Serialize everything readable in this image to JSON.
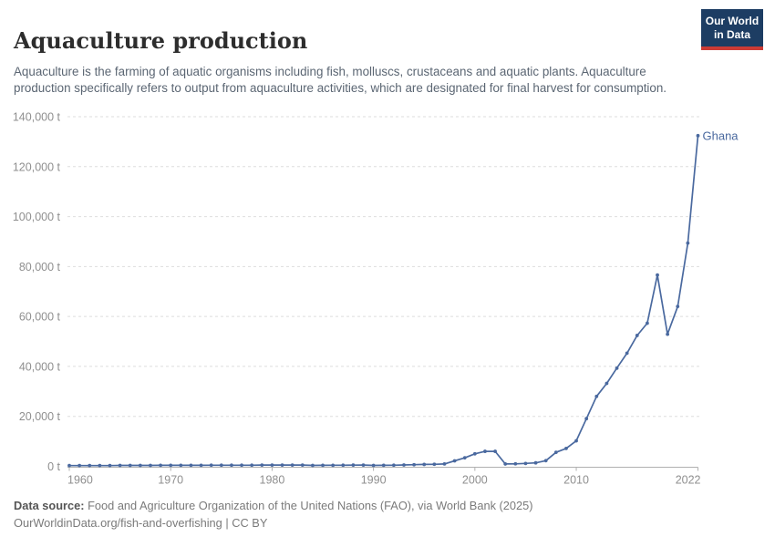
{
  "header": {
    "title": "Aquaculture production",
    "subtitle": "Aquaculture is the farming of aquatic organisms including fish, molluscs, crustaceans and aquatic plants. Aquaculture production specifically refers to output from aquaculture activities, which are designated for final harvest for consumption.",
    "logo": {
      "line1": "Our World",
      "line2": "in Data",
      "bg_color": "#1d3d63",
      "stripe_color": "#cc3b35"
    }
  },
  "chart_data": {
    "type": "line",
    "title": "Aquaculture production",
    "entity_label": "Ghana",
    "unit": "t",
    "line_color": "#4a699f",
    "grid": "dashed",
    "legend_position": "end-of-line-label",
    "xlim": [
      1960,
      2022
    ],
    "ylim": [
      0,
      140000
    ],
    "xticks": [
      1960,
      1970,
      1980,
      1990,
      2000,
      2010,
      2022
    ],
    "yticks": [
      0,
      20000,
      40000,
      60000,
      80000,
      100000,
      120000,
      140000
    ],
    "x": [
      1960,
      1961,
      1962,
      1963,
      1964,
      1965,
      1966,
      1967,
      1968,
      1969,
      1970,
      1971,
      1972,
      1973,
      1974,
      1975,
      1976,
      1977,
      1978,
      1979,
      1980,
      1981,
      1982,
      1983,
      1984,
      1985,
      1986,
      1987,
      1988,
      1989,
      1990,
      1991,
      1992,
      1993,
      1994,
      1995,
      1996,
      1997,
      1998,
      1999,
      2000,
      2001,
      2002,
      2003,
      2004,
      2005,
      2006,
      2007,
      2008,
      2009,
      2010,
      2011,
      2012,
      2013,
      2014,
      2015,
      2016,
      2017,
      2018,
      2019,
      2020,
      2021,
      2022
    ],
    "series": [
      {
        "name": "Ghana",
        "values": [
          300,
          300,
          300,
          300,
          300,
          350,
          350,
          350,
          350,
          400,
          400,
          400,
          400,
          400,
          450,
          450,
          450,
          450,
          450,
          500,
          500,
          500,
          500,
          500,
          350,
          400,
          420,
          450,
          480,
          500,
          360,
          400,
          450,
          550,
          650,
          750,
          820,
          950,
          2200,
          3400,
          5000,
          6000,
          6000,
          938,
          1000,
          1154,
          1390,
          2260,
          5594,
          7155,
          10200,
          19092,
          28000,
          33200,
          39300,
          45300,
          52400,
          57300,
          76600,
          52900,
          64000,
          89400,
          132400
        ]
      }
    ]
  },
  "footer": {
    "source_label": "Data source:",
    "source_text": "Food and Agriculture Organization of the United Nations (FAO), via World Bank (2025)",
    "url": "OurWorldinData.org/fish-and-overfishing",
    "separator": "|",
    "license": "CC BY"
  }
}
